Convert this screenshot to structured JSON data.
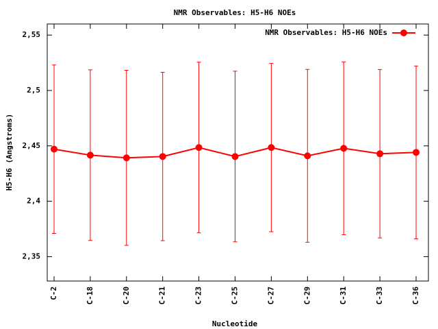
{
  "chart_data": {
    "type": "line",
    "title": "NMR Observables: H5-H6 NOEs",
    "x_label": "Nucleotide",
    "y_label": "H5-H6 (Angstroms)",
    "categories": [
      "C-2",
      "C-18",
      "C-20",
      "C-21",
      "C-23",
      "C-25",
      "C-27",
      "C-29",
      "C-31",
      "C-33",
      "C-36"
    ],
    "series": [
      {
        "name": "NMR Observables: H5-H6 NOEs",
        "color": "#ff0000",
        "values": [
          2.447,
          2.4416,
          2.4392,
          2.4404,
          2.4485,
          2.4404,
          2.4485,
          2.441,
          2.4478,
          2.4429,
          2.4441
        ],
        "errors": [
          0.076,
          0.077,
          0.079,
          0.076,
          0.077,
          0.077,
          0.076,
          0.078,
          0.078,
          0.076,
          0.078
        ]
      }
    ],
    "ylim": [
      2.328,
      2.56
    ],
    "yticks": [
      {
        "value": 2.35,
        "label": "2,35"
      },
      {
        "value": 2.4,
        "label": "2,4"
      },
      {
        "value": 2.45,
        "label": "2,45"
      },
      {
        "value": 2.5,
        "label": "2,5"
      },
      {
        "value": 2.55,
        "label": "2,55"
      }
    ],
    "legend": "top-right",
    "grid": false
  }
}
